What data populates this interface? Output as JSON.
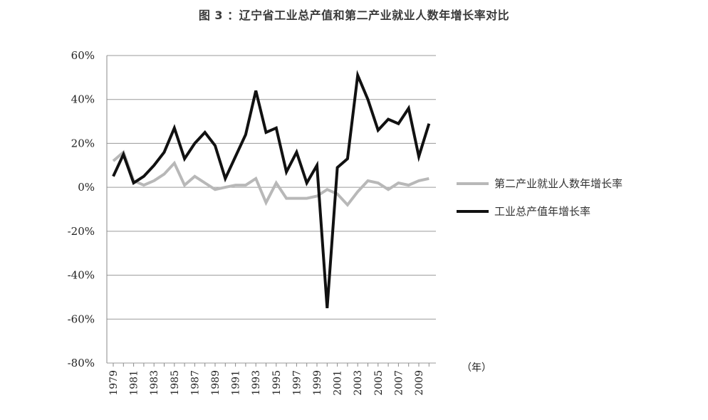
{
  "chart_data": {
    "type": "line",
    "title": "图 3 ：辽宁省工业总产值和第二产业就业人数年增长率对比",
    "xlabel": "（年）",
    "ylabel": "",
    "x": [
      1979,
      1980,
      1981,
      1982,
      1983,
      1984,
      1985,
      1986,
      1987,
      1988,
      1989,
      1990,
      1991,
      1992,
      1993,
      1994,
      1995,
      1996,
      1997,
      1998,
      1999,
      2000,
      2001,
      2002,
      2003,
      2004,
      2005,
      2006,
      2007,
      2008,
      2009,
      2010
    ],
    "x_tick_labels": [
      "1979",
      "1981",
      "1983",
      "1985",
      "1987",
      "1989",
      "1991",
      "1993",
      "1995",
      "1997",
      "1999",
      "2001",
      "2003",
      "2005",
      "2007",
      "2009"
    ],
    "ylim": [
      -80,
      60
    ],
    "y_ticks": [
      60,
      40,
      20,
      0,
      -20,
      -40,
      -60,
      -80
    ],
    "y_tick_labels": [
      "60%",
      "40%",
      "20%",
      "0%",
      "-20%",
      "-40%",
      "-60%",
      "-80%"
    ],
    "grid": "horizontal",
    "legend_position": "right",
    "series": [
      {
        "name": "第二产业就业人数年增长率",
        "color": "#b8b8b8",
        "values": [
          12,
          16,
          3,
          1,
          3,
          6,
          11,
          1,
          5,
          2,
          -1,
          0,
          1,
          1,
          4,
          -7,
          2,
          -5,
          -5,
          -5,
          -4,
          -1,
          -3,
          -8,
          -2,
          3,
          2,
          -1,
          2,
          1,
          3,
          4
        ]
      },
      {
        "name": "工业总产值年增长率",
        "color": "#111111",
        "values": [
          5,
          15,
          2,
          5,
          10,
          16,
          27,
          13,
          20,
          25,
          19,
          4,
          14,
          24,
          44,
          25,
          27,
          7,
          16,
          2,
          10,
          -55,
          9,
          13,
          51,
          40,
          26,
          31,
          29,
          36,
          14,
          29
        ]
      }
    ]
  }
}
